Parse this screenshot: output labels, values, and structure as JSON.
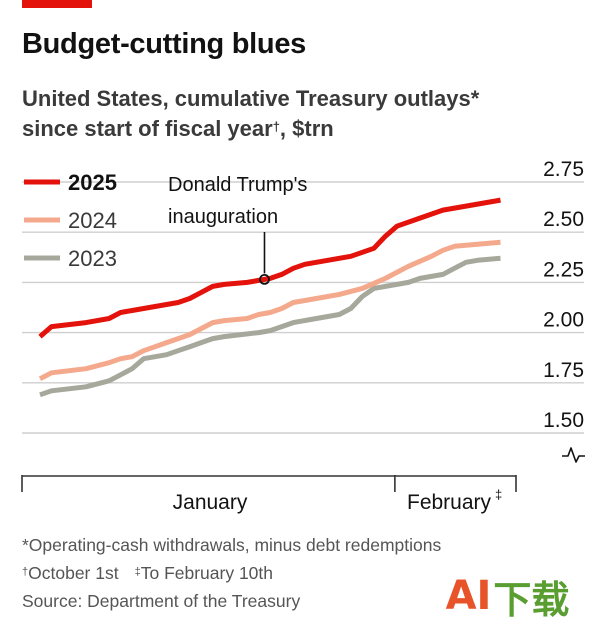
{
  "header": {
    "title": "Budget-cutting blues",
    "subtitle_line1": "United States, cumulative Treasury outlays*",
    "subtitle_line2_pre": "since start of fiscal year",
    "subtitle_line2_mark": "†",
    "subtitle_line2_post": ", $trn"
  },
  "footnotes": {
    "line1": "*Operating-cash withdrawals, minus debt redemptions",
    "line2a_mark": "†",
    "line2a": "October 1st",
    "line2b_mark": "‡",
    "line2b": "To February 10th",
    "line3": "Source: Department of the Treasury"
  },
  "watermark": {
    "text_a": "A",
    "text_i": "I",
    "text_rest": "下载"
  },
  "colors": {
    "2025": "#e3120b",
    "2024": "#f4a98c",
    "2023": "#a7a89c",
    "grid": "#cfcfcf",
    "axis": "#333333",
    "annotation": "#121212"
  },
  "chart_data": {
    "type": "line",
    "title": "Budget-cutting blues",
    "ylabel": "",
    "xlabel": "",
    "ylim": [
      1.4,
      2.82
    ],
    "xlim": [
      0,
      41
    ],
    "yticks": [
      1.5,
      1.75,
      2.0,
      2.25,
      2.5,
      2.75
    ],
    "ytick_labels": [
      "1.50",
      "1.75",
      "2.00",
      "2.25",
      "2.50",
      "2.75"
    ],
    "x_categories": [
      {
        "label": "January",
        "start": 0,
        "end": 31
      },
      {
        "label": "February",
        "mark": "‡",
        "start": 31,
        "end": 41
      }
    ],
    "axis_break": true,
    "legend_position": "top-left",
    "annotation": {
      "line1": "Donald Trump's",
      "line2": "inauguration",
      "x": 19.5,
      "series": "2025"
    },
    "series": [
      {
        "name": "2025",
        "bold": true,
        "x": [
          0,
          1,
          4,
          6,
          7,
          8,
          10,
          12,
          13,
          14,
          15,
          16,
          18,
          19,
          20,
          21,
          22,
          23,
          24,
          25,
          27,
          29,
          30,
          31,
          33,
          35,
          37,
          39,
          40
        ],
        "y": [
          1.98,
          2.03,
          2.05,
          2.07,
          2.1,
          2.11,
          2.13,
          2.15,
          2.17,
          2.2,
          2.23,
          2.24,
          2.25,
          2.26,
          2.27,
          2.29,
          2.32,
          2.34,
          2.35,
          2.36,
          2.38,
          2.42,
          2.48,
          2.53,
          2.57,
          2.61,
          2.63,
          2.65,
          2.66
        ]
      },
      {
        "name": "2024",
        "bold": false,
        "x": [
          0,
          1,
          4,
          6,
          7,
          8,
          9,
          10,
          11,
          13,
          14,
          15,
          16,
          18,
          19,
          20,
          21,
          22,
          23,
          24,
          26,
          28,
          30,
          32,
          34,
          35,
          36,
          38,
          40
        ],
        "y": [
          1.77,
          1.8,
          1.82,
          1.85,
          1.87,
          1.88,
          1.91,
          1.93,
          1.95,
          1.99,
          2.02,
          2.05,
          2.06,
          2.07,
          2.09,
          2.1,
          2.12,
          2.15,
          2.16,
          2.17,
          2.19,
          2.22,
          2.27,
          2.33,
          2.38,
          2.41,
          2.43,
          2.44,
          2.45
        ]
      },
      {
        "name": "2023",
        "bold": false,
        "x": [
          0,
          1,
          4,
          6,
          7,
          8,
          9,
          11,
          12,
          13,
          14,
          15,
          16,
          19,
          20,
          21,
          22,
          24,
          26,
          27,
          28,
          29,
          30,
          32,
          33,
          35,
          36,
          37,
          38,
          40
        ],
        "y": [
          1.69,
          1.71,
          1.73,
          1.76,
          1.79,
          1.82,
          1.87,
          1.89,
          1.91,
          1.93,
          1.95,
          1.97,
          1.98,
          2.0,
          2.01,
          2.03,
          2.05,
          2.07,
          2.09,
          2.12,
          2.18,
          2.22,
          2.23,
          2.25,
          2.27,
          2.29,
          2.32,
          2.35,
          2.36,
          2.37
        ]
      }
    ]
  }
}
